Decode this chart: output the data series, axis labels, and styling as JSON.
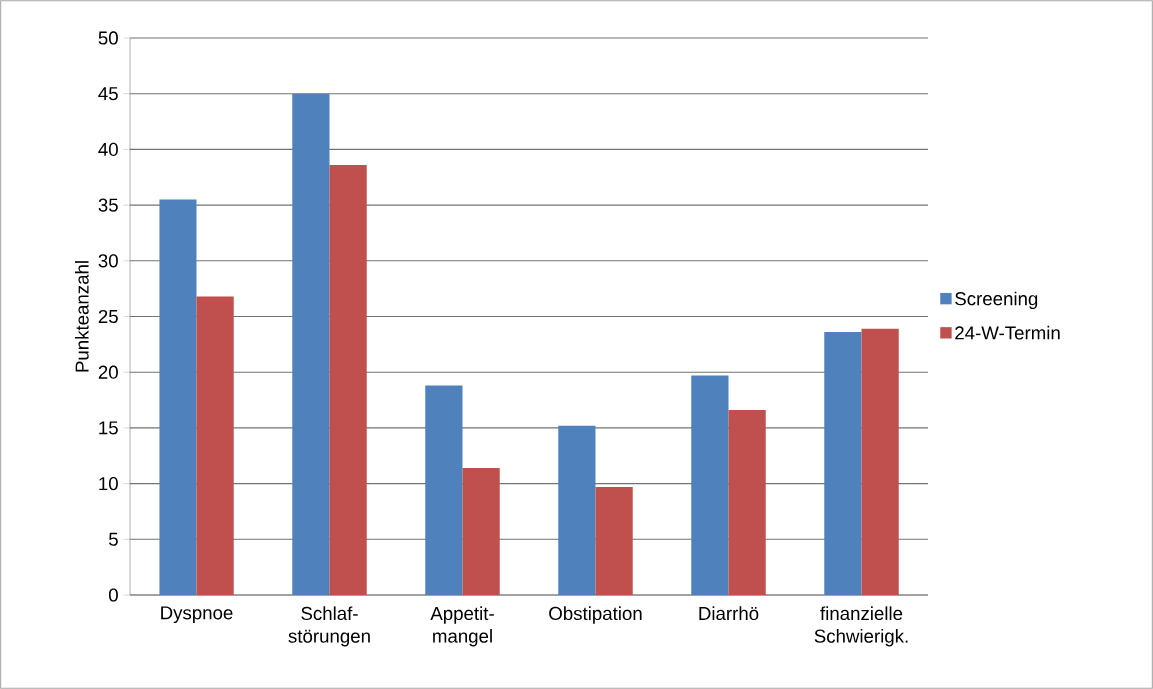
{
  "chart_data": {
    "type": "bar",
    "ylabel": "Punkteanzahl",
    "categories": [
      "Dyspnoe",
      "Schlaf- störungen",
      "Appetit- mangel",
      "Obstipation",
      "Diarrhö",
      "finanzielle Schwierigk."
    ],
    "series": [
      {
        "name": "Screening",
        "color": "#4f81bd",
        "values": [
          35.5,
          45.0,
          18.8,
          15.2,
          19.7,
          23.6
        ]
      },
      {
        "name": "24-W-Termin",
        "color": "#c0504d",
        "values": [
          26.8,
          38.6,
          11.4,
          9.7,
          16.6,
          23.9
        ]
      }
    ],
    "ylim": [
      0,
      50
    ],
    "yticks": [
      0,
      5,
      10,
      15,
      20,
      25,
      30,
      35,
      40,
      45,
      50
    ],
    "grid": "y",
    "legend": "right"
  }
}
